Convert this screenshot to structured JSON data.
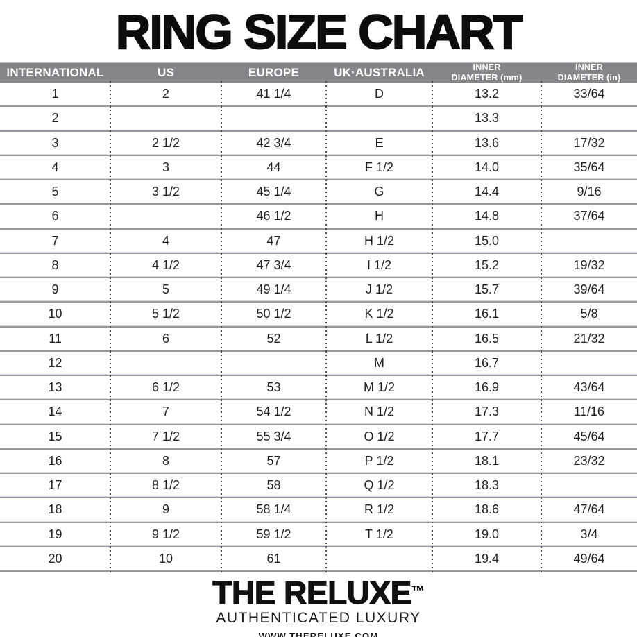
{
  "title": "RING SIZE CHART",
  "chart_data": {
    "type": "table",
    "title": "RING SIZE CHART",
    "columns": [
      "INTERNATIONAL",
      "US",
      "EUROPE",
      "UK·AUSTRALIA",
      "INNER\nDIAMETER (mm)",
      "INNER\nDIAMETER (in)"
    ],
    "rows": [
      [
        "1",
        "2",
        "41 1/4",
        "D",
        "13.2",
        "33/64"
      ],
      [
        "2",
        "",
        "",
        "",
        "13.3",
        ""
      ],
      [
        "3",
        "2 1/2",
        "42 3/4",
        "E",
        "13.6",
        "17/32"
      ],
      [
        "4",
        "3",
        "44",
        "F 1/2",
        "14.0",
        "35/64"
      ],
      [
        "5",
        "3 1/2",
        "45 1/4",
        "G",
        "14.4",
        "9/16"
      ],
      [
        "6",
        "",
        "46 1/2",
        "H",
        "14.8",
        "37/64"
      ],
      [
        "7",
        "4",
        "47",
        "H 1/2",
        "15.0",
        ""
      ],
      [
        "8",
        "4 1/2",
        "47 3/4",
        "I 1/2",
        "15.2",
        "19/32"
      ],
      [
        "9",
        "5",
        "49 1/4",
        "J 1/2",
        "15.7",
        "39/64"
      ],
      [
        "10",
        "5 1/2",
        "50 1/2",
        "K 1/2",
        "16.1",
        "5/8"
      ],
      [
        "11",
        "6",
        "52",
        "L 1/2",
        "16.5",
        "21/32"
      ],
      [
        "12",
        "",
        "",
        "M",
        "16.7",
        ""
      ],
      [
        "13",
        "6 1/2",
        "53",
        "M 1/2",
        "16.9",
        "43/64"
      ],
      [
        "14",
        "7",
        "54 1/2",
        "N 1/2",
        "17.3",
        "11/16"
      ],
      [
        "15",
        "7 1/2",
        "55 3/4",
        "O 1/2",
        "17.7",
        "45/64"
      ],
      [
        "16",
        "8",
        "57",
        "P 1/2",
        "18.1",
        "23/32"
      ],
      [
        "17",
        "8 1/2",
        "58",
        "Q 1/2",
        "18.3",
        ""
      ],
      [
        "18",
        "9",
        "58 1/4",
        "R 1/2",
        "18.6",
        "47/64"
      ],
      [
        "19",
        "9 1/2",
        "59 1/2",
        "T 1/2",
        "19.0",
        "3/4"
      ],
      [
        "20",
        "10",
        "61",
        "",
        "19.4",
        "49/64"
      ]
    ]
  },
  "footer": {
    "brand": "THE RELUXE",
    "trademark": "™",
    "tagline": "AUTHENTICATED LUXURY",
    "website": "WWW.THERELUXE.COM"
  },
  "colors": {
    "header_bg": "#848689",
    "header_text": "#ffffff",
    "body_text": "#232323",
    "divider": "#97999c",
    "dotted_line": "#505153",
    "title_text": "#0d0d0d"
  }
}
